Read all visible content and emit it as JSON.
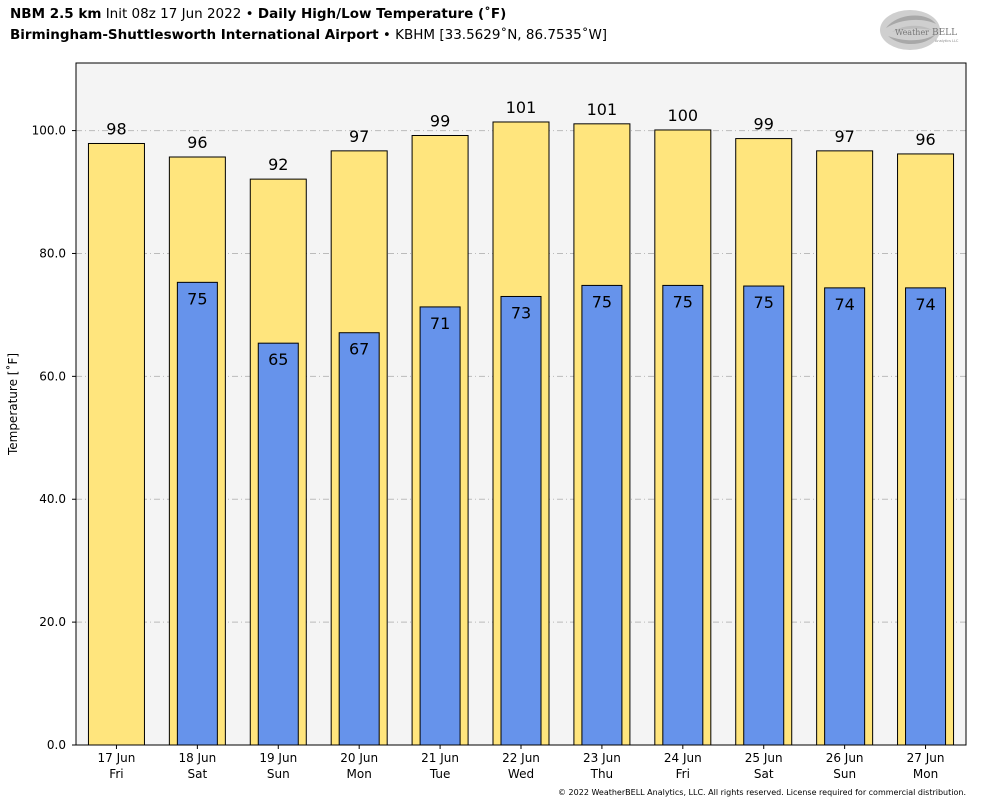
{
  "header": {
    "model": "NBM 2.5 km",
    "init": "Init 08z 17 Jun 2022",
    "bullet": "•",
    "product": "Daily High/Low Temperature (˚F)",
    "station": "Birmingham-Shuttlesworth International Airport",
    "station_info": "KBHM [33.5629˚N, 86.7535˚W]"
  },
  "logo": {
    "text_1": "Weather",
    "text_2": "BELL",
    "subtext": "Analytics LLC"
  },
  "copyright": "© 2022 WeatherBELL Analytics, LLC. All rights reserved. License required for commercial distribution.",
  "colors": {
    "high": "#FFE57D",
    "low": "#6693EB",
    "plot_bg": "#F4F4F4",
    "grid": "#BBBBBB"
  },
  "chart_data": {
    "type": "bar",
    "categories": [
      [
        "17 Jun",
        "Fri"
      ],
      [
        "18 Jun",
        "Sat"
      ],
      [
        "19 Jun",
        "Sun"
      ],
      [
        "20 Jun",
        "Mon"
      ],
      [
        "21 Jun",
        "Tue"
      ],
      [
        "22 Jun",
        "Wed"
      ],
      [
        "23 Jun",
        "Thu"
      ],
      [
        "24 Jun",
        "Fri"
      ],
      [
        "25 Jun",
        "Sat"
      ],
      [
        "26 Jun",
        "Sun"
      ],
      [
        "27 Jun",
        "Mon"
      ]
    ],
    "series": [
      {
        "key": "high",
        "values": [
          97.9,
          95.7,
          92.1,
          96.7,
          99.2,
          101.4,
          101.1,
          100.1,
          98.7,
          96.7,
          96.2
        ],
        "labels": [
          "98",
          "96",
          "92",
          "97",
          "99",
          "101",
          "101",
          "100",
          "99",
          "97",
          "96"
        ]
      },
      {
        "key": "low",
        "values": [
          null,
          75.3,
          65.4,
          67.1,
          71.3,
          73.0,
          74.8,
          74.8,
          74.7,
          74.4,
          74.4
        ],
        "labels": [
          "",
          "75",
          "65",
          "67",
          "71",
          "73",
          "75",
          "75",
          "75",
          "74",
          "74"
        ]
      }
    ],
    "ylabel": "Temperature [˚F]",
    "ylim": [
      0,
      111
    ],
    "yticks": [
      "0.0",
      "20.0",
      "40.0",
      "60.0",
      "80.0",
      "100.0"
    ],
    "ytick_values": [
      0,
      20,
      40,
      60,
      80,
      100
    ],
    "grid": true
  }
}
